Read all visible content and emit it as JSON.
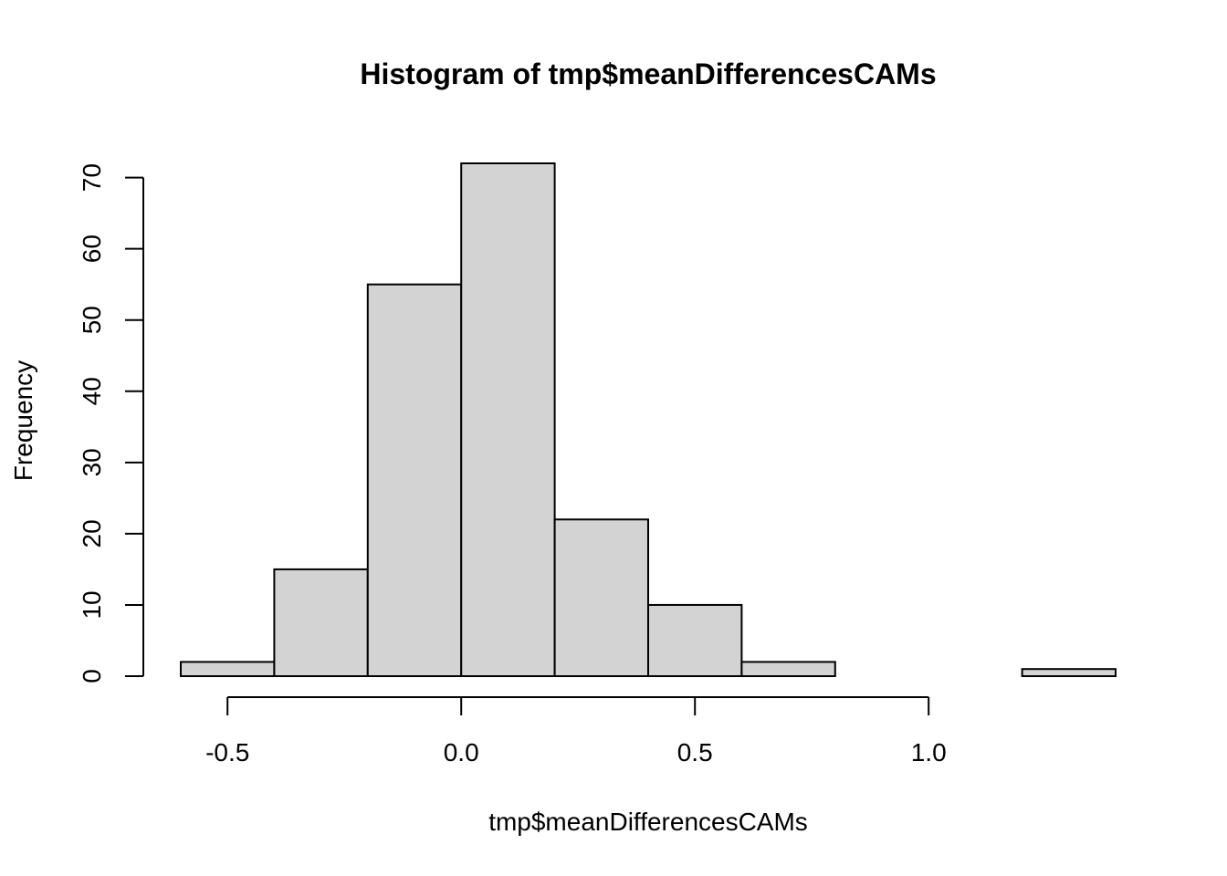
{
  "chart_data": {
    "type": "bar",
    "title": "Histogram of tmp$meanDifferencesCAMs",
    "xlabel": "tmp$meanDifferencesCAMs",
    "ylabel": "Frequency",
    "bins": [
      {
        "x0": -0.6,
        "x1": -0.4,
        "count": 2
      },
      {
        "x0": -0.4,
        "x1": -0.2,
        "count": 15
      },
      {
        "x0": -0.2,
        "x1": 0.0,
        "count": 55
      },
      {
        "x0": 0.0,
        "x1": 0.2,
        "count": 72
      },
      {
        "x0": 0.2,
        "x1": 0.4,
        "count": 22
      },
      {
        "x0": 0.4,
        "x1": 0.6,
        "count": 10
      },
      {
        "x0": 0.6,
        "x1": 0.8,
        "count": 2
      },
      {
        "x0": 0.8,
        "x1": 1.0,
        "count": 0
      },
      {
        "x0": 1.0,
        "x1": 1.2,
        "count": 0
      },
      {
        "x0": 1.2,
        "x1": 1.4,
        "count": 1
      }
    ],
    "xlim": [
      -0.6,
      1.4
    ],
    "ylim": [
      0,
      72
    ],
    "x_ticks": [
      {
        "value": -0.5,
        "label": "-0.5"
      },
      {
        "value": 0.0,
        "label": "0.0"
      },
      {
        "value": 0.5,
        "label": "0.5"
      },
      {
        "value": 1.0,
        "label": "1.0"
      }
    ],
    "y_ticks": [
      {
        "value": 0,
        "label": "0"
      },
      {
        "value": 10,
        "label": "10"
      },
      {
        "value": 20,
        "label": "20"
      },
      {
        "value": 30,
        "label": "30"
      },
      {
        "value": 40,
        "label": "40"
      },
      {
        "value": 50,
        "label": "50"
      },
      {
        "value": 60,
        "label": "60"
      },
      {
        "value": 70,
        "label": "70"
      }
    ],
    "colors": {
      "bar_fill": "#d3d3d3",
      "bar_stroke": "#000000",
      "background": "#ffffff"
    },
    "grid": false,
    "legend": "none"
  }
}
